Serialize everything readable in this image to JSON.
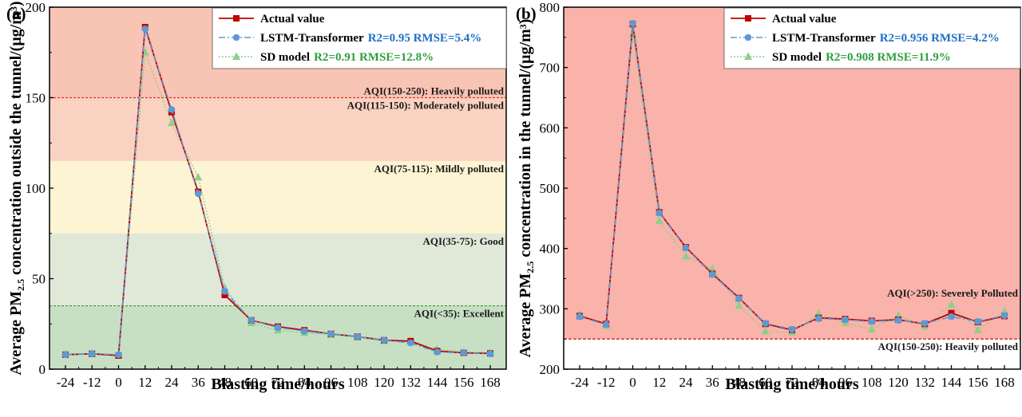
{
  "colors": {
    "actual": "#c00000",
    "lstm": "#5b9bd5",
    "sd": "#8fcf8a",
    "lstm_text": "#1f6fc5",
    "sd_text": "#2e9e3f"
  },
  "chart_data": [
    {
      "type": "line",
      "panel_label": "(a)",
      "xlabel": "Blasting time/hours",
      "ylabel": "Average PM2.5 concentration outside the tunnel/(μg/m3)",
      "ylabel_parts": {
        "pre": "Average PM",
        "sub": "2.5",
        "mid": " concentration outside the tunnel/(μg/m",
        "sup": "3",
        "post": ")"
      },
      "x": [
        -24,
        -12,
        0,
        12,
        24,
        36,
        48,
        60,
        72,
        84,
        96,
        108,
        120,
        132,
        144,
        156,
        168
      ],
      "x_tick_labels": [
        "-24",
        "-12",
        "0",
        "12",
        "24",
        "36",
        "48",
        "60",
        "72",
        "84",
        "96",
        "108",
        "120",
        "132",
        "144",
        "156",
        "168"
      ],
      "ylim": [
        0,
        200
      ],
      "y_ticks": [
        0,
        50,
        100,
        150,
        200
      ],
      "y_tick_labels": [
        "0",
        "50",
        "100",
        "150",
        "200"
      ],
      "series": [
        {
          "name": "Actual value",
          "values": [
            8,
            8.5,
            7.5,
            189,
            142,
            98,
            41,
            27,
            23.5,
            21.5,
            19.5,
            18,
            16,
            15.5,
            10,
            9,
            8.7
          ]
        },
        {
          "name": "LSTM-Transformer",
          "metric": "R2=0.95 RMSE=5.4%",
          "values": [
            8,
            8.5,
            8,
            188,
            143.5,
            97,
            43,
            27,
            23,
            21,
            19.5,
            18,
            16,
            14.5,
            9.5,
            9,
            8.5
          ]
        },
        {
          "name": "SD model",
          "metric": "R2=0.91 RMSE=12.8%",
          "values": [
            8.5,
            8.5,
            8,
            175,
            136,
            106,
            45,
            25.5,
            21.5,
            20,
            19,
            17.5,
            15.5,
            15.5,
            11,
            9.5,
            9
          ]
        }
      ],
      "zones": [
        {
          "from": 150,
          "to": 200,
          "color": "#f8c4b4",
          "label": "AQI(150-250): Heavily polluted",
          "label_at": 150,
          "label_side": "above"
        },
        {
          "from": 115,
          "to": 150,
          "color": "#fad2c1",
          "label": "AQI(115-150): Moderately polluted",
          "label_at": 150,
          "label_side": "below"
        },
        {
          "from": 75,
          "to": 115,
          "color": "#fcf4d2",
          "label": "AQI(75-115): Mildly polluted",
          "label_at": 115,
          "label_side": "below"
        },
        {
          "from": 35,
          "to": 75,
          "color": "#e0e8d8",
          "label": "AQI(35-75): Good",
          "label_at": 75,
          "label_side": "below"
        },
        {
          "from": 0,
          "to": 35,
          "color": "#c7e0c4",
          "label": "AQI(<35): Excellent",
          "label_at": 35,
          "label_side": "below"
        }
      ],
      "threshold_lines": [
        {
          "value": 150,
          "color": "#e03030",
          "dash": "3,2"
        },
        {
          "value": 35,
          "color": "#3a9a3a",
          "dash": "3,2"
        }
      ],
      "legend": {
        "position": "top-right",
        "items": [
          "Actual value",
          "LSTM-Transformer",
          "SD model"
        ]
      }
    },
    {
      "type": "line",
      "panel_label": "(b)",
      "xlabel": "Blasting time/hours",
      "ylabel": "Average PM2.5 concentration in the tunnel/(μg/m3)",
      "ylabel_parts": {
        "pre": "Average PM",
        "sub": "2.5",
        "mid": " concentration in the tunnel/(μg/m",
        "sup": "3",
        "post": ")"
      },
      "x": [
        -24,
        -12,
        0,
        12,
        24,
        36,
        48,
        60,
        72,
        84,
        96,
        108,
        120,
        132,
        144,
        156,
        168
      ],
      "x_tick_labels": [
        "-24",
        "-12",
        "0",
        "12",
        "24",
        "36",
        "48",
        "60",
        "72",
        "84",
        "96",
        "108",
        "120",
        "132",
        "144",
        "156",
        "168"
      ],
      "ylim": [
        200,
        800
      ],
      "y_ticks": [
        200,
        300,
        400,
        500,
        600,
        700,
        800
      ],
      "y_tick_labels": [
        "200",
        "300",
        "400",
        "500",
        "600",
        "700",
        "800"
      ],
      "series": [
        {
          "name": "Actual value",
          "values": [
            288,
            275,
            772,
            460,
            402,
            358,
            318,
            275,
            265,
            285,
            283,
            280,
            282,
            275,
            293,
            278,
            288
          ]
        },
        {
          "name": "LSTM-Transformer",
          "metric": "R2=0.956 RMSE=4.2%",
          "values": [
            287,
            274,
            773,
            459,
            401,
            357,
            317,
            276,
            266,
            284,
            282,
            279,
            281,
            276,
            287,
            279,
            289
          ]
        },
        {
          "name": "SD model",
          "metric": "R2=0.908 RMSE=11.9%",
          "values": [
            291,
            272,
            755,
            446,
            387,
            366,
            305,
            263,
            261,
            292,
            277,
            266,
            289,
            271,
            307,
            265,
            296
          ]
        }
      ],
      "zones": [
        {
          "from": 250,
          "to": 800,
          "color": "#f9b3aa",
          "label": "AQI(>250): Severely Polluted",
          "label_at": 250,
          "label_side": "above_high"
        },
        {
          "from": 200,
          "to": 250,
          "color": "#ffffff",
          "label": "AQI(150-250): Heavily polluted",
          "label_at": 250,
          "label_side": "below"
        }
      ],
      "threshold_lines": [
        {
          "value": 250,
          "color": "#c00000",
          "dash": "4,2"
        }
      ],
      "legend": {
        "position": "top-right",
        "items": [
          "Actual value",
          "LSTM-Transformer",
          "SD model"
        ]
      }
    }
  ]
}
